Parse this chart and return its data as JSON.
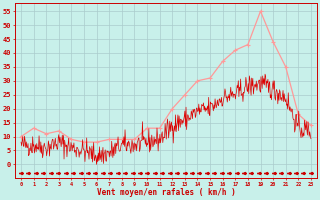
{
  "xlabel": "Vent moyen/en rafales ( km/h )",
  "background_color": "#c8f0ea",
  "grid_color": "#aacccc",
  "line_color_avg": "#ff9999",
  "line_color_gust": "#dd0000",
  "arrow_color": "#cc0000",
  "yticks": [
    0,
    5,
    10,
    15,
    20,
    25,
    30,
    35,
    40,
    45,
    50,
    55
  ],
  "avg_x": [
    0,
    1,
    2,
    3,
    4,
    5,
    6,
    7,
    8,
    9,
    10,
    11,
    12,
    13,
    14,
    15,
    16,
    17,
    18,
    19,
    20,
    21,
    22,
    23
  ],
  "avg_y": [
    10,
    13,
    11,
    12,
    9,
    8,
    8,
    9,
    9,
    9,
    13,
    13,
    20,
    25,
    30,
    31,
    37,
    41,
    43,
    55,
    44,
    35,
    18,
    14
  ],
  "gust_base_x": [
    0,
    1,
    2,
    3,
    4,
    5,
    6,
    7,
    8,
    9,
    10,
    11,
    12,
    13,
    14,
    15,
    16,
    17,
    18,
    19,
    20,
    21,
    22,
    23
  ],
  "gust_base_y": [
    7,
    7,
    6,
    8,
    6,
    5,
    3,
    4,
    7,
    7,
    8,
    9,
    14,
    16,
    19,
    20,
    24,
    25,
    28,
    29,
    27,
    24,
    13,
    12
  ],
  "xlabel_color": "#cc0000",
  "tick_color": "#cc0000",
  "noise_seed": 42,
  "noise_scale": 2.0,
  "n_gust_points": 500,
  "n_arrows": 40
}
